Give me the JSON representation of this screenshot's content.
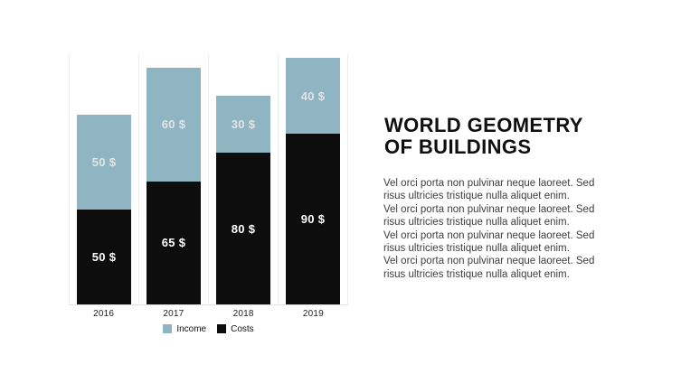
{
  "article": {
    "title_lines": [
      "WORLD GEOMETRY",
      "OF BUILDINGS"
    ],
    "body_lines": [
      "Vel orci porta non pulvinar neque laoreet. Sed",
      "risus ultricies tristique nulla aliquet enim.",
      "Vel orci porta non pulvinar neque laoreet. Sed",
      "risus ultricies tristique nulla aliquet enim.",
      "Vel orci porta non pulvinar neque laoreet. Sed",
      "risus ultricies tristique nulla aliquet enim.",
      "Vel orci porta non pulvinar neque laoreet. Sed",
      "risus ultricies tristique nulla aliquet enim."
    ]
  },
  "chart_data": {
    "type": "bar",
    "stacked": true,
    "categories": [
      "2016",
      "2017",
      "2018",
      "2019"
    ],
    "series": [
      {
        "name": "Income",
        "color": "#8fb4c2",
        "label_color": "#e4e4e4",
        "values": [
          50,
          60,
          30,
          40
        ]
      },
      {
        "name": "Costs",
        "color": "#0d0d0d",
        "label_color": "#ffffff",
        "values": [
          50,
          65,
          80,
          90
        ]
      }
    ],
    "value_suffix": " $",
    "stack_order_bottom_to_top": [
      "Costs",
      "Income"
    ],
    "legend_position": "bottom",
    "ylim": [
      0,
      132
    ],
    "gridlines": "vertical-category-boundaries",
    "xlabel": "",
    "ylabel": "",
    "title": ""
  }
}
